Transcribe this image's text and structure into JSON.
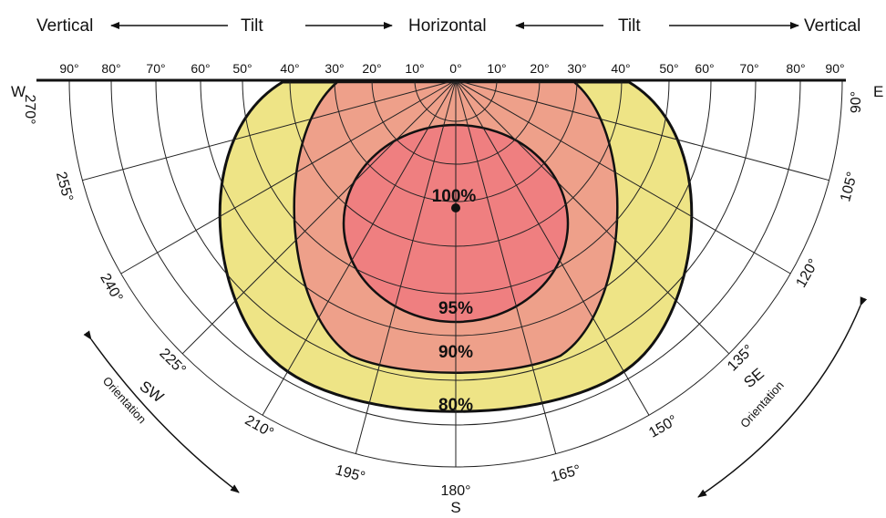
{
  "header": {
    "vertical_left": "Vertical",
    "tilt_left": "Tilt",
    "horizontal": "Horizontal",
    "tilt_right": "Tilt",
    "vertical_right": "Vertical"
  },
  "tilt_ticks": [
    "90°",
    "80°",
    "70°",
    "60°",
    "50°",
    "40°",
    "30°",
    "20°",
    "10°",
    "0°",
    "10°",
    "20°",
    "30°",
    "40°",
    "50°",
    "60°",
    "70°",
    "80°",
    "90°"
  ],
  "compass": {
    "west": "W",
    "east": "E",
    "south": "S",
    "southwest": "SW",
    "southeast": "SE"
  },
  "orientation_labels": {
    "left": "Orientation",
    "right": "Orientation"
  },
  "azimuth_ticks": [
    "270°",
    "255°",
    "240°",
    "225°",
    "210°",
    "195°",
    "180°",
    "165°",
    "150°",
    "135°",
    "120°",
    "105°",
    "90°"
  ],
  "zones": [
    {
      "label": "100%",
      "color": "#ef7f80"
    },
    {
      "label": "95%",
      "color": "#ef7f80"
    },
    {
      "label": "90%",
      "color": "#eea08a"
    },
    {
      "label": "80%",
      "color": "#eee486"
    }
  ]
}
